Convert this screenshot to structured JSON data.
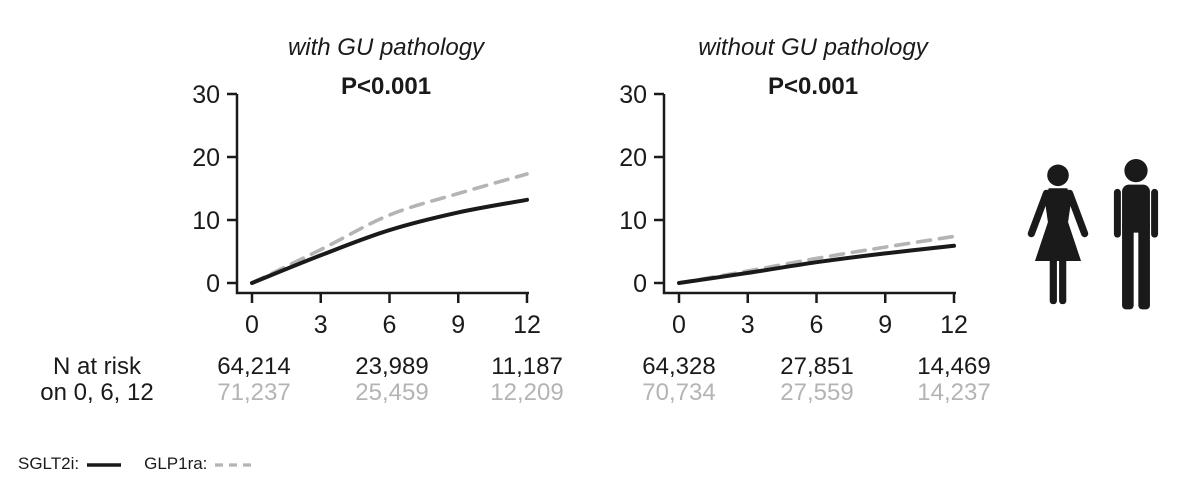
{
  "colors": {
    "black": "#1a1a1a",
    "gray": "#b4b4b4",
    "background": "#ffffff"
  },
  "chart_data": [
    {
      "type": "line",
      "title": "with GU pathology",
      "pvalue": "P<0.001",
      "xlim": [
        0,
        12
      ],
      "ylim": [
        0,
        30
      ],
      "x": [
        0,
        3,
        6,
        9,
        12
      ],
      "xticks": [
        "0",
        "3",
        "6",
        "9",
        "12"
      ],
      "yticks": [
        "0",
        "10",
        "20",
        "30"
      ],
      "grid": false,
      "series": [
        {
          "name": "SGLT2i",
          "style": "solid",
          "color": "#1a1a1a",
          "values": [
            0,
            4.4,
            8.4,
            11.2,
            13.2
          ]
        },
        {
          "name": "GLP1ra",
          "style": "dashed",
          "color": "#b4b4b4",
          "values": [
            0,
            5.3,
            10.8,
            14.2,
            17.3
          ]
        }
      ],
      "n_at_risk": {
        "times": [
          0,
          6,
          12
        ],
        "rows": [
          {
            "name": "SGLT2i",
            "color": "black",
            "values": [
              "64,214",
              "23,989",
              "11,187"
            ]
          },
          {
            "name": "GLP1ra",
            "color": "gray",
            "values": [
              "71,237",
              "25,459",
              "12,209"
            ]
          }
        ]
      }
    },
    {
      "type": "line",
      "title": "without GU pathology",
      "pvalue": "P<0.001",
      "xlim": [
        0,
        12
      ],
      "ylim": [
        0,
        30
      ],
      "x": [
        0,
        3,
        6,
        9,
        12
      ],
      "xticks": [
        "0",
        "3",
        "6",
        "9",
        "12"
      ],
      "yticks": [
        "0",
        "10",
        "20",
        "30"
      ],
      "grid": false,
      "series": [
        {
          "name": "SGLT2i",
          "style": "solid",
          "color": "#1a1a1a",
          "values": [
            0,
            1.6,
            3.3,
            4.7,
            5.9
          ]
        },
        {
          "name": "GLP1ra",
          "style": "dashed",
          "color": "#b4b4b4",
          "values": [
            0,
            1.9,
            3.9,
            5.7,
            7.4
          ]
        }
      ],
      "n_at_risk": {
        "times": [
          0,
          6,
          12
        ],
        "rows": [
          {
            "name": "SGLT2i",
            "color": "black",
            "values": [
              "64,328",
              "27,851",
              "14,469"
            ]
          },
          {
            "name": "GLP1ra",
            "color": "gray",
            "values": [
              "70,734",
              "27,559",
              "14,237"
            ]
          }
        ]
      }
    }
  ],
  "risk_label": {
    "line1": "N at risk",
    "line2": "on 0, 6, 12"
  },
  "legend": [
    {
      "label": "SGLT2i:",
      "style": "solid",
      "color": "#1a1a1a"
    },
    {
      "label": "GLP1ra:",
      "style": "dashed",
      "color": "#b4b4b4"
    }
  ],
  "icons": [
    {
      "name": "woman-icon"
    },
    {
      "name": "man-icon"
    }
  ]
}
